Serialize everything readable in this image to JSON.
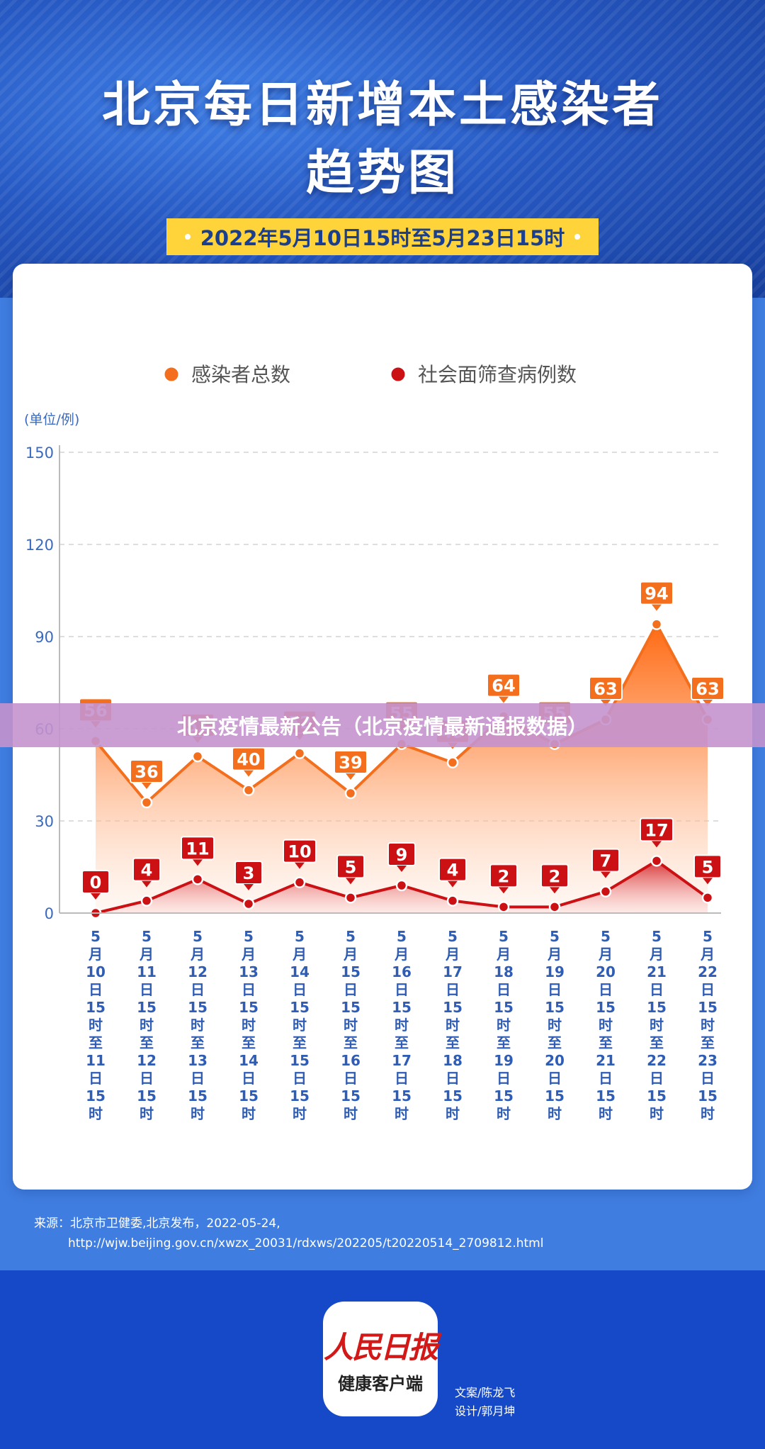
{
  "header": {
    "title_line1": "北京每日新增本土感染者",
    "title_line2": "趋势图",
    "date_range": "2022年5月10日15时至5月23日15时"
  },
  "overlay_banner": "北京疫情最新公告（北京疫情最新通报数据）",
  "chart_data": {
    "type": "area",
    "title": "北京每日新增本土感染者趋势图",
    "subtitle": "2022年5月10日15时至5月23日15时",
    "ylabel": "(单位/例)",
    "ylim": [
      0,
      150
    ],
    "yticks": [
      0,
      30,
      60,
      90,
      120,
      150
    ],
    "grid": true,
    "legend_position": "top-center",
    "categories": [
      "5月10日15时至11日15时",
      "5月11日15时至12日15时",
      "5月12日15时至13日15时",
      "5月13日15时至14日15时",
      "5月14日15时至15日15时",
      "5月15日15时至16日15时",
      "5月16日15时至17日15时",
      "5月17日15时至18日15时",
      "5月18日15时至19日15时",
      "5月19日15时至20日15时",
      "5月20日15时至21日15时",
      "5月21日15时至22日15时",
      "5月22日15时至23日15时"
    ],
    "series": [
      {
        "name": "感染者总数",
        "color": "#f36f1e",
        "values": [
          56,
          36,
          51,
          40,
          52,
          39,
          55,
          49,
          64,
          55,
          63,
          94,
          63
        ]
      },
      {
        "name": "社会面筛查病例数",
        "color": "#cc1115",
        "values": [
          0,
          4,
          11,
          3,
          10,
          5,
          9,
          4,
          2,
          2,
          7,
          17,
          5
        ]
      }
    ]
  },
  "source": {
    "line1": "来源：北京市卫健委,北京发布，2022-05-24,",
    "line2": "http://wjw.beijing.gov.cn/xwzx_20031/rdxws/202205/t20220514_2709812.html"
  },
  "footer": {
    "logo_mark": "人民日报",
    "logo_sub": "健康客户端",
    "credit_writer": "文案/陈龙飞",
    "credit_design": "设计/郭月坤"
  }
}
